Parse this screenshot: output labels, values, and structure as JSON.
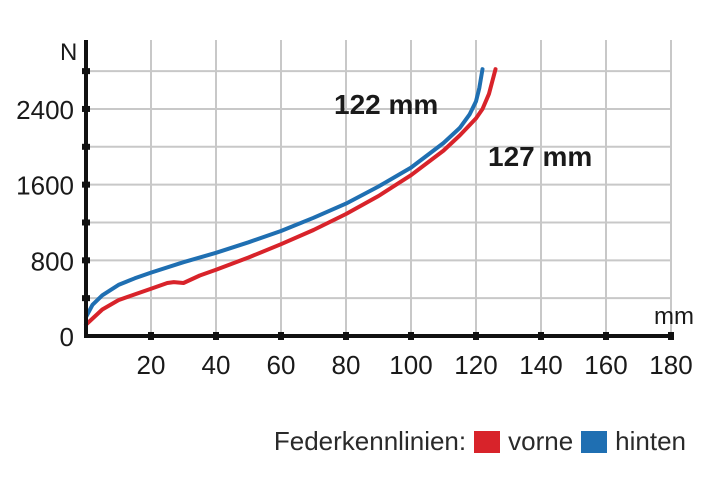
{
  "chart_data": {
    "type": "line",
    "title": "",
    "xlabel": "mm",
    "ylabel": "N",
    "xlim": [
      0,
      180
    ],
    "ylim": [
      0,
      2800
    ],
    "x_ticks": [
      20,
      40,
      60,
      80,
      100,
      120,
      140,
      160,
      180
    ],
    "y_ticks": [
      0,
      800,
      1600,
      2400
    ],
    "grid": true,
    "series": [
      {
        "name": "vorne",
        "color": "#d8232a",
        "points": [
          [
            0,
            120
          ],
          [
            5,
            280
          ],
          [
            10,
            380
          ],
          [
            15,
            440
          ],
          [
            20,
            500
          ],
          [
            25,
            560
          ],
          [
            27,
            570
          ],
          [
            30,
            560
          ],
          [
            35,
            640
          ],
          [
            40,
            700
          ],
          [
            50,
            830
          ],
          [
            60,
            970
          ],
          [
            70,
            1120
          ],
          [
            80,
            1290
          ],
          [
            90,
            1480
          ],
          [
            100,
            1700
          ],
          [
            110,
            1960
          ],
          [
            115,
            2120
          ],
          [
            120,
            2300
          ],
          [
            122,
            2400
          ],
          [
            124,
            2560
          ],
          [
            126,
            2820
          ]
        ]
      },
      {
        "name": "hinten",
        "color": "#1f6fb2",
        "points": [
          [
            0,
            200
          ],
          [
            2,
            330
          ],
          [
            5,
            430
          ],
          [
            10,
            540
          ],
          [
            15,
            610
          ],
          [
            20,
            670
          ],
          [
            30,
            780
          ],
          [
            40,
            880
          ],
          [
            50,
            990
          ],
          [
            60,
            1110
          ],
          [
            70,
            1250
          ],
          [
            80,
            1400
          ],
          [
            90,
            1580
          ],
          [
            100,
            1780
          ],
          [
            110,
            2040
          ],
          [
            115,
            2200
          ],
          [
            118,
            2340
          ],
          [
            120,
            2480
          ],
          [
            121,
            2620
          ],
          [
            122,
            2820
          ]
        ]
      }
    ],
    "annotations": [
      {
        "text": "122 mm"
      },
      {
        "text": "127 mm"
      }
    ],
    "legend": {
      "title": "Federkennlinien:",
      "placement": "bottom-right"
    }
  }
}
